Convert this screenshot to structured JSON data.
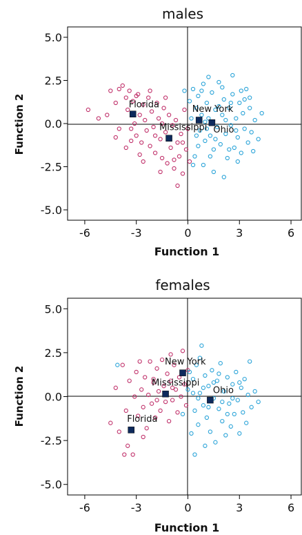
{
  "chart_data": [
    {
      "type": "scatter",
      "title": "males",
      "xlabel": "Function 1",
      "ylabel": "Function 2",
      "xlim": [
        -7,
        6.6
      ],
      "ylim": [
        -5.6,
        5.6
      ],
      "xticks": [
        -6,
        -3,
        0,
        3,
        6
      ],
      "yticks": [
        5.0,
        2.5,
        0.0,
        -2.5,
        -5.0
      ],
      "xtick_labels": [
        "-6",
        "-3",
        "0",
        "3",
        "6"
      ],
      "ytick_labels": [
        "5.0",
        "2.5",
        "0.0",
        "-2.5",
        "-5.0"
      ],
      "grid": false,
      "reference_lines": {
        "x": 0,
        "y": 0
      },
      "colors": {
        "pink_group": "#c0306a",
        "blue_group": "#29a3d8",
        "centroid": "#0e2a5c"
      },
      "group_centroids": [
        {
          "name": "Florida",
          "x": -3.2,
          "y": 0.55
        },
        {
          "name": "New York",
          "x": 0.65,
          "y": 0.2
        },
        {
          "name": "Ohio",
          "x": 1.4,
          "y": 0.05
        },
        {
          "name": "Mississippi",
          "x": -1.1,
          "y": -0.85
        }
      ],
      "series": [
        {
          "color": "#c0306a",
          "points": [
            [
              -5.8,
              0.8
            ],
            [
              -5.2,
              0.3
            ],
            [
              -4.5,
              1.9
            ],
            [
              -4.2,
              1.2
            ],
            [
              -4.0,
              2.0
            ],
            [
              -3.8,
              2.2
            ],
            [
              -3.6,
              1.5
            ],
            [
              -3.5,
              0.8
            ],
            [
              -3.4,
              1.9
            ],
            [
              -3.3,
              -0.3
            ],
            [
              -3.2,
              1.3
            ],
            [
              -3.1,
              0.0
            ],
            [
              -3.0,
              -0.7
            ],
            [
              -2.9,
              1.7
            ],
            [
              -2.8,
              0.5
            ],
            [
              -2.7,
              -1.1
            ],
            [
              -2.6,
              1.1
            ],
            [
              -2.5,
              0.2
            ],
            [
              -2.4,
              -0.4
            ],
            [
              -2.3,
              1.5
            ],
            [
              -2.2,
              -1.3
            ],
            [
              -2.1,
              0.7
            ],
            [
              -2.0,
              -0.2
            ],
            [
              -1.9,
              -1.7
            ],
            [
              -1.8,
              1.2
            ],
            [
              -1.7,
              0.3
            ],
            [
              -1.6,
              -0.9
            ],
            [
              -1.5,
              -2.0
            ],
            [
              -1.4,
              0.9
            ],
            [
              -1.3,
              -0.5
            ],
            [
              -1.2,
              -2.3
            ],
            [
              -1.1,
              0.5
            ],
            [
              -1.0,
              -1.4
            ],
            [
              -0.9,
              -0.1
            ],
            [
              -0.8,
              -2.6
            ],
            [
              -0.7,
              0.2
            ],
            [
              -0.6,
              -1.1
            ],
            [
              -0.5,
              -1.9
            ],
            [
              -0.4,
              -0.6
            ],
            [
              -0.3,
              -2.9
            ],
            [
              -0.2,
              0.8
            ],
            [
              -0.1,
              -1.5
            ],
            [
              0.0,
              -0.3
            ],
            [
              -2.6,
              -2.2
            ],
            [
              -3.6,
              -1.4
            ],
            [
              -4.2,
              -0.8
            ],
            [
              -4.7,
              0.5
            ],
            [
              -1.6,
              -2.8
            ],
            [
              -0.6,
              -3.6
            ],
            [
              -2.2,
              1.9
            ],
            [
              -3.0,
              1.6
            ],
            [
              -1.3,
              1.5
            ],
            [
              -4.0,
              -0.3
            ],
            [
              -2.8,
              -1.8
            ],
            [
              -0.8,
              -2.1
            ],
            [
              -1.9,
              -0.7
            ],
            [
              -3.3,
              -1.0
            ],
            [
              -0.3,
              -1.1
            ],
            [
              0.1,
              -2.2
            ],
            [
              -1.5,
              0.0
            ]
          ]
        },
        {
          "color": "#29a3d8",
          "points": [
            [
              -0.2,
              1.9
            ],
            [
              0.1,
              1.3
            ],
            [
              0.3,
              2.0
            ],
            [
              0.5,
              0.9
            ],
            [
              0.6,
              1.6
            ],
            [
              0.7,
              -0.4
            ],
            [
              0.8,
              0.5
            ],
            [
              0.9,
              2.3
            ],
            [
              1.0,
              -1.0
            ],
            [
              1.1,
              1.2
            ],
            [
              1.2,
              0.3
            ],
            [
              1.3,
              -0.7
            ],
            [
              1.4,
              1.8
            ],
            [
              1.5,
              -1.5
            ],
            [
              1.6,
              0.8
            ],
            [
              1.7,
              -0.2
            ],
            [
              1.8,
              2.4
            ],
            [
              1.9,
              -1.2
            ],
            [
              2.0,
              0.5
            ],
            [
              2.1,
              1.4
            ],
            [
              2.2,
              -0.6
            ],
            [
              2.3,
              -2.0
            ],
            [
              2.4,
              0.9
            ],
            [
              2.5,
              -0.1
            ],
            [
              2.6,
              1.7
            ],
            [
              2.7,
              -1.4
            ],
            [
              2.8,
              0.3
            ],
            [
              2.9,
              -0.8
            ],
            [
              3.0,
              1.2
            ],
            [
              3.1,
              -1.7
            ],
            [
              3.2,
              0.6
            ],
            [
              3.3,
              -0.3
            ],
            [
              3.4,
              2.0
            ],
            [
              3.5,
              -1.1
            ],
            [
              3.6,
              0.9
            ],
            [
              3.7,
              -0.5
            ],
            [
              3.9,
              0.2
            ],
            [
              4.1,
              -0.9
            ],
            [
              4.3,
              0.6
            ],
            [
              0.4,
              -1.9
            ],
            [
              0.9,
              -2.4
            ],
            [
              1.5,
              -2.8
            ],
            [
              2.1,
              -3.1
            ],
            [
              2.6,
              2.8
            ],
            [
              1.2,
              2.7
            ],
            [
              0.6,
              -1.3
            ],
            [
              1.8,
              1.0
            ],
            [
              2.4,
              -1.5
            ],
            [
              3.1,
              1.9
            ],
            [
              0.2,
              0.3
            ],
            [
              0.5,
              -0.7
            ],
            [
              1.0,
              0.1
            ],
            [
              1.6,
              -0.9
            ],
            [
              2.2,
              0.2
            ],
            [
              2.8,
              -0.4
            ],
            [
              3.3,
              1.4
            ],
            [
              3.8,
              -1.6
            ],
            [
              0.3,
              -2.4
            ],
            [
              1.3,
              -1.9
            ],
            [
              2.9,
              -2.2
            ],
            [
              0.8,
              1.9
            ],
            [
              2.0,
              2.1
            ],
            [
              3.6,
              1.5
            ],
            [
              1.1,
              -0.3
            ],
            [
              2.5,
              1.2
            ]
          ]
        }
      ]
    },
    {
      "type": "scatter",
      "title": "females",
      "xlabel": "Function 1",
      "ylabel": "Function 2",
      "xlim": [
        -7,
        6.6
      ],
      "ylim": [
        -5.6,
        5.6
      ],
      "xticks": [
        -6,
        -3,
        0,
        3,
        6
      ],
      "yticks": [
        5.0,
        2.5,
        0.0,
        -2.5,
        -5.0
      ],
      "xtick_labels": [
        "-6",
        "-3",
        "0",
        "3",
        "6"
      ],
      "ytick_labels": [
        "5.0",
        "2.5",
        "0.0",
        "-2.5",
        "-5.0"
      ],
      "grid": false,
      "reference_lines": {
        "x": 0,
        "y": 0
      },
      "colors": {
        "pink_group": "#c0306a",
        "blue_group": "#29a3d8",
        "centroid": "#0e2a5c"
      },
      "group_centroids": [
        {
          "name": "New York",
          "x": -0.3,
          "y": 1.35
        },
        {
          "name": "Mississippi",
          "x": -1.3,
          "y": 0.15
        },
        {
          "name": "Ohio",
          "x": 1.3,
          "y": -0.2
        },
        {
          "name": "Florida",
          "x": -3.3,
          "y": -1.9
        }
      ],
      "series": [
        {
          "color": "#c0306a",
          "points": [
            [
              -4.5,
              -1.5
            ],
            [
              -4.2,
              0.5
            ],
            [
              -4.0,
              -2.0
            ],
            [
              -3.8,
              1.8
            ],
            [
              -3.6,
              -0.8
            ],
            [
              -3.5,
              -2.8
            ],
            [
              -3.4,
              0.9
            ],
            [
              -3.2,
              -3.3
            ],
            [
              -3.1,
              0.0
            ],
            [
              -3.0,
              1.4
            ],
            [
              -2.9,
              -1.1
            ],
            [
              -2.8,
              2.0
            ],
            [
              -2.7,
              0.4
            ],
            [
              -2.6,
              -0.6
            ],
            [
              -2.5,
              1.1
            ],
            [
              -2.4,
              -1.8
            ],
            [
              -2.3,
              0.1
            ],
            [
              -2.2,
              2.0
            ],
            [
              -2.1,
              -0.4
            ],
            [
              -2.0,
              0.8
            ],
            [
              -1.9,
              -1.2
            ],
            [
              -1.8,
              1.6
            ],
            [
              -1.7,
              0.3
            ],
            [
              -1.6,
              -0.8
            ],
            [
              -1.5,
              2.1
            ],
            [
              -1.4,
              0.6
            ],
            [
              -1.3,
              -0.3
            ],
            [
              -1.2,
              1.3
            ],
            [
              -1.1,
              -1.4
            ],
            [
              -1.0,
              0.9
            ],
            [
              -0.9,
              -0.2
            ],
            [
              -0.8,
              1.8
            ],
            [
              -0.7,
              0.4
            ],
            [
              -0.6,
              -0.9
            ],
            [
              -0.5,
              1.1
            ],
            [
              -0.4,
              0.0
            ],
            [
              -0.3,
              2.6
            ],
            [
              -0.2,
              0.7
            ],
            [
              -0.1,
              -0.5
            ],
            [
              0.0,
              1.5
            ],
            [
              -3.7,
              -3.3
            ],
            [
              -2.6,
              -2.3
            ],
            [
              -1.8,
              -0.2
            ],
            [
              -0.9,
              0.5
            ],
            [
              -2.0,
              1.0
            ],
            [
              -1.0,
              2.4
            ]
          ]
        },
        {
          "color": "#29a3d8",
          "points": [
            [
              -4.1,
              1.8
            ],
            [
              -0.3,
              -1.0
            ],
            [
              0.0,
              0.4
            ],
            [
              0.2,
              -2.1
            ],
            [
              0.3,
              1.0
            ],
            [
              0.4,
              -0.8
            ],
            [
              0.5,
              1.8
            ],
            [
              0.6,
              -1.6
            ],
            [
              0.7,
              0.2
            ],
            [
              0.8,
              2.9
            ],
            [
              0.9,
              -0.5
            ],
            [
              1.0,
              1.2
            ],
            [
              1.1,
              -1.2
            ],
            [
              1.2,
              0.6
            ],
            [
              1.3,
              -2.0
            ],
            [
              1.4,
              1.5
            ],
            [
              1.5,
              -0.1
            ],
            [
              1.6,
              -2.6
            ],
            [
              1.7,
              0.9
            ],
            [
              1.8,
              -0.7
            ],
            [
              1.9,
              1.9
            ],
            [
              2.0,
              -1.4
            ],
            [
              2.1,
              0.3
            ],
            [
              2.2,
              -2.2
            ],
            [
              2.3,
              1.1
            ],
            [
              2.4,
              -0.4
            ],
            [
              2.5,
              -1.7
            ],
            [
              2.6,
              0.7
            ],
            [
              2.7,
              -1.0
            ],
            [
              2.8,
              1.4
            ],
            [
              2.9,
              -0.2
            ],
            [
              3.0,
              -2.1
            ],
            [
              3.1,
              0.5
            ],
            [
              3.2,
              -0.9
            ],
            [
              3.3,
              1.0
            ],
            [
              3.4,
              -1.5
            ],
            [
              3.5,
              0.1
            ],
            [
              3.6,
              2.0
            ],
            [
              3.7,
              -0.6
            ],
            [
              3.9,
              0.3
            ],
            [
              4.1,
              -0.3
            ],
            [
              0.4,
              -3.3
            ],
            [
              1.0,
              -2.8
            ],
            [
              0.3,
              0.2
            ],
            [
              0.9,
              0.5
            ],
            [
              1.5,
              0.8
            ],
            [
              2.0,
              -0.3
            ],
            [
              2.6,
              -0.1
            ],
            [
              1.2,
              -0.6
            ],
            [
              0.6,
              -0.1
            ],
            [
              1.8,
              1.3
            ],
            [
              2.3,
              -1.0
            ],
            [
              3.0,
              0.8
            ],
            [
              0.1,
              1.4
            ],
            [
              0.7,
              2.2
            ]
          ]
        }
      ]
    }
  ]
}
